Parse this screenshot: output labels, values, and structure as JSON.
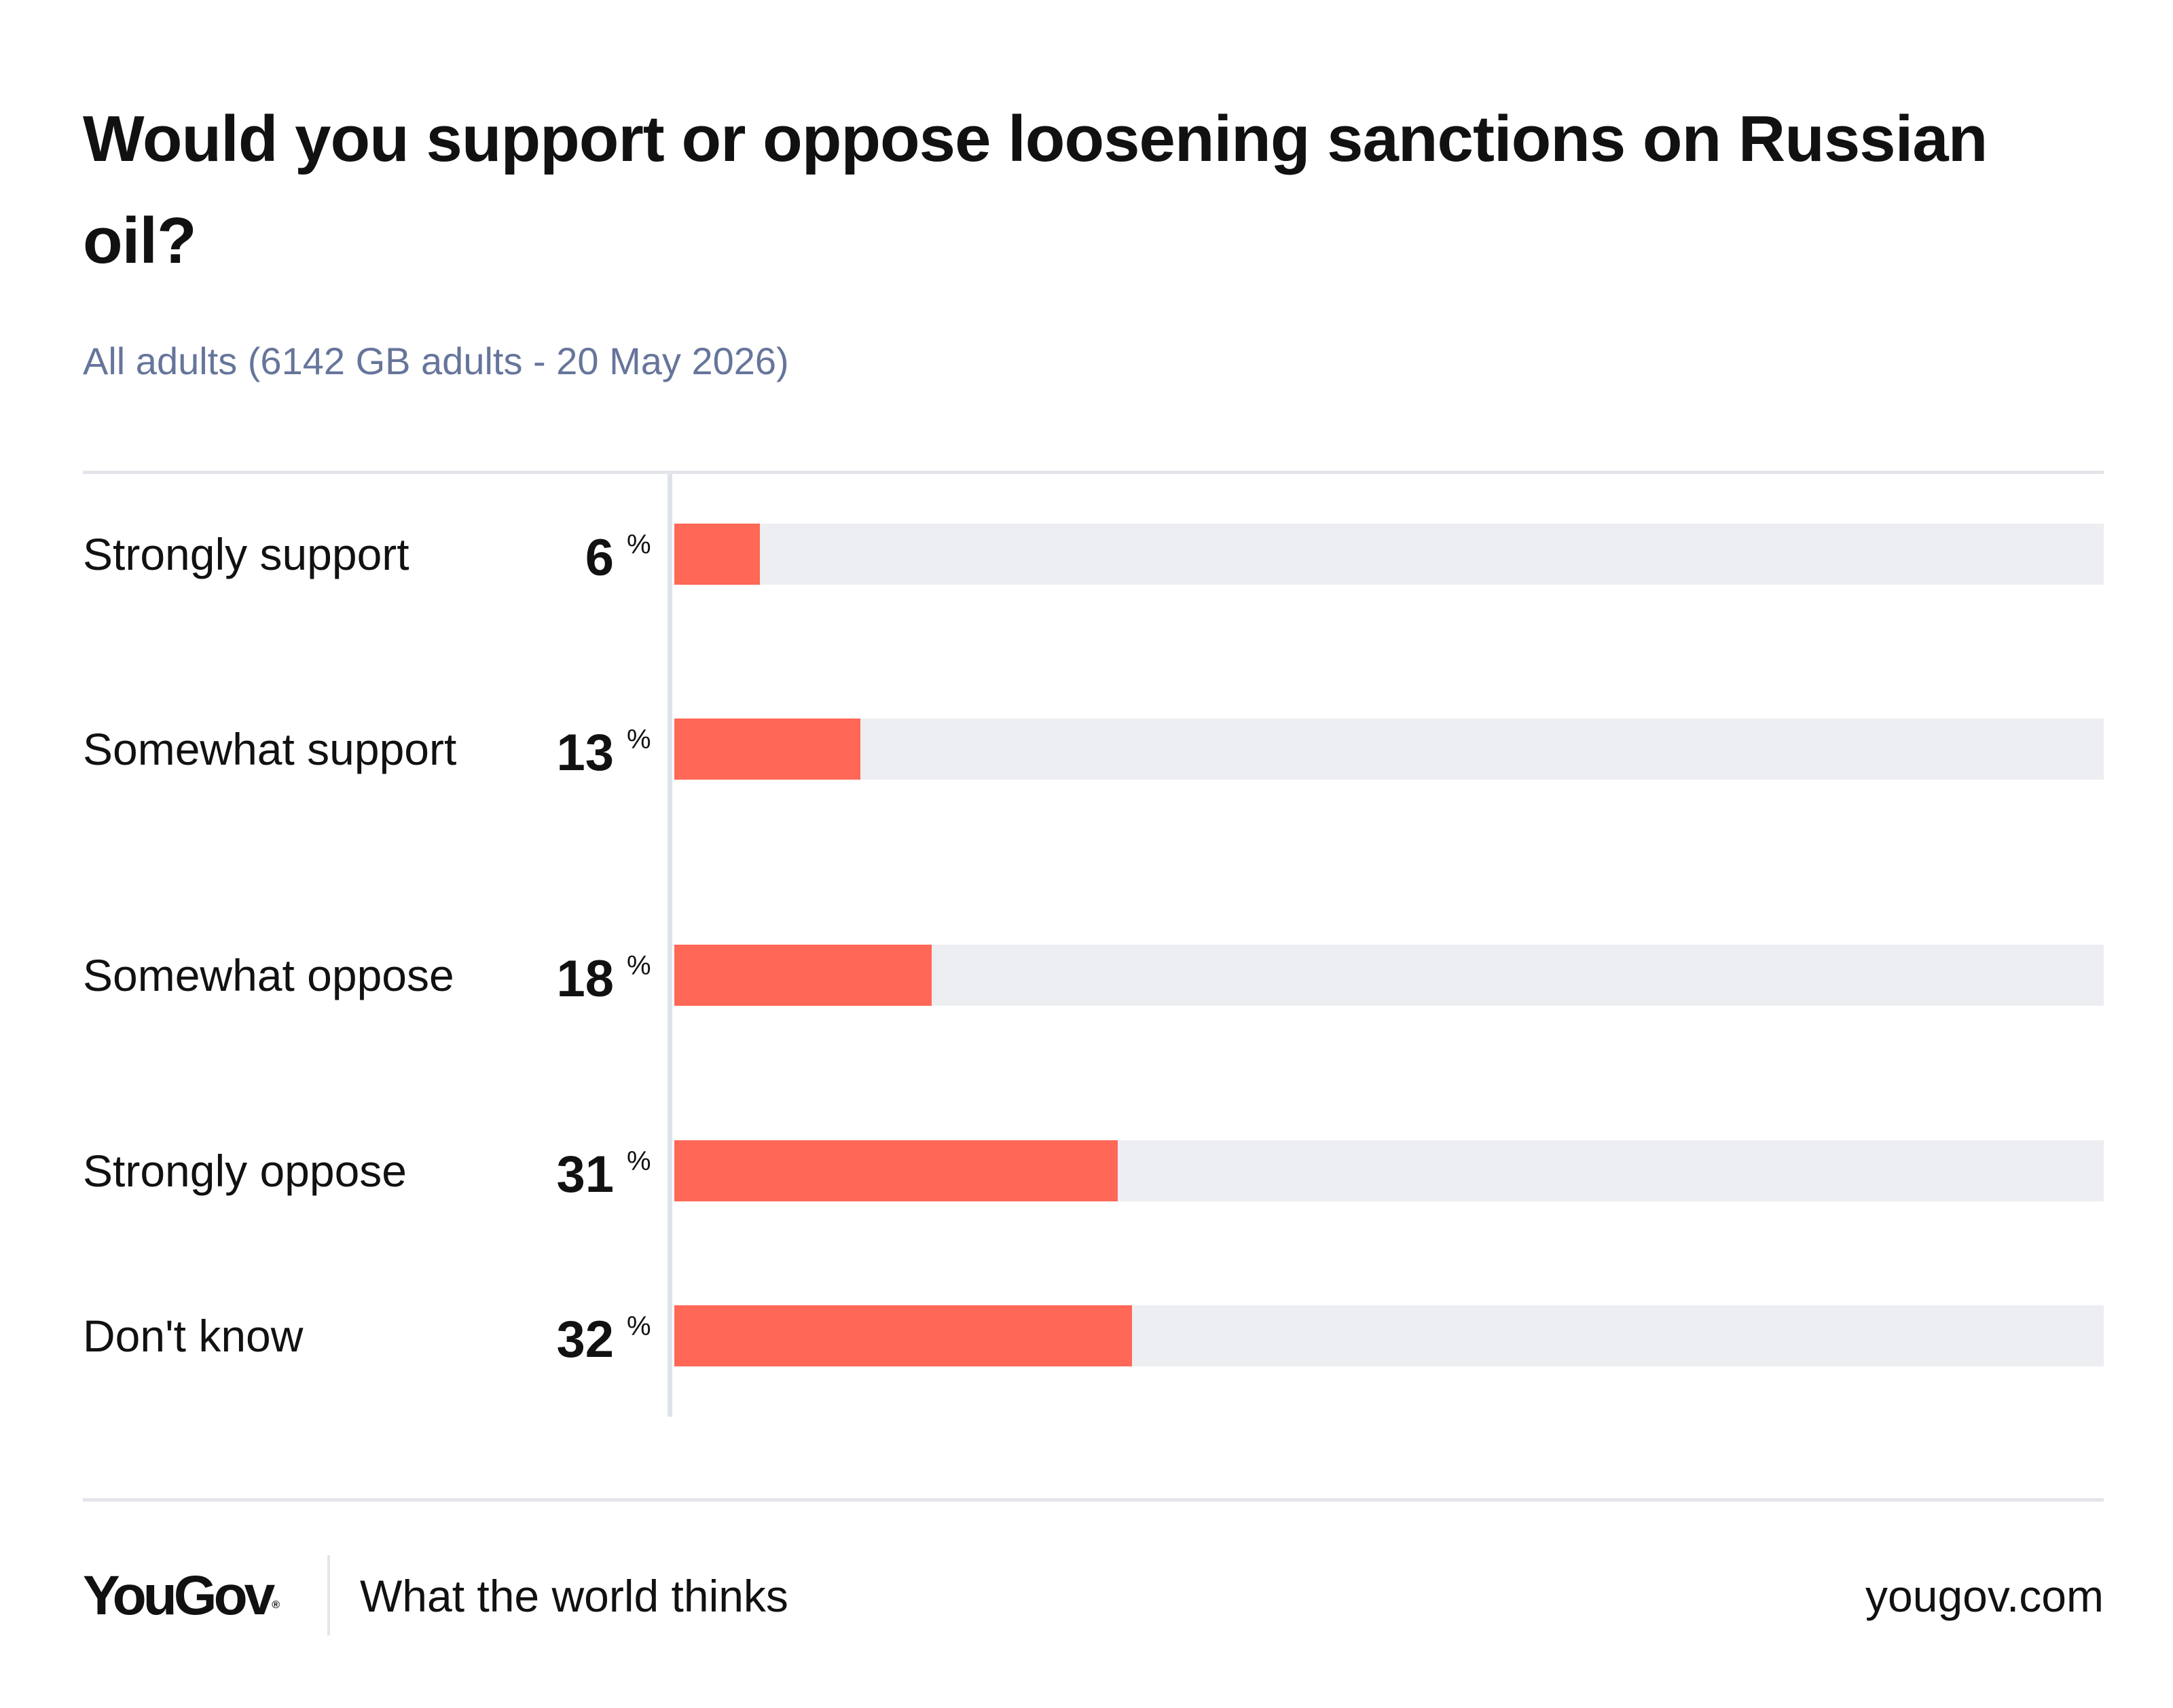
{
  "chart_data": {
    "type": "bar",
    "orientation": "horizontal",
    "title": "Would you support or oppose loosening sanctions on Russian oil?",
    "subtitle": "All adults (6142 GB adults - 20 May 2026)",
    "unit": "%",
    "categories": [
      "Strongly support",
      "Somewhat support",
      "Somewhat oppose",
      "Strongly oppose",
      "Don't know"
    ],
    "values": [
      6,
      13,
      18,
      31,
      32
    ],
    "xlim": [
      0,
      100
    ],
    "bar_color": "#ff6756",
    "track_color": "#edeef2",
    "grid": false,
    "legend": "none"
  },
  "footer": {
    "logo": "YouGov",
    "logo_mark": "®",
    "tagline": "What the world thinks",
    "url": "yougov.com"
  },
  "colors": {
    "subtitle": "#66759a",
    "rule": "#e3e5ea",
    "text": "#111111"
  }
}
